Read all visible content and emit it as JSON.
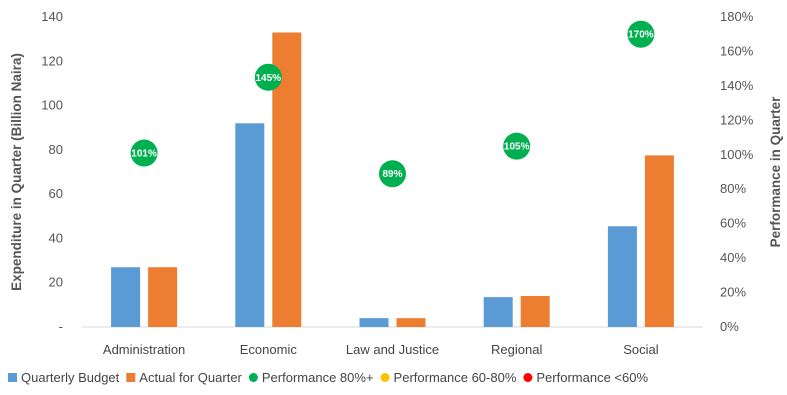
{
  "chart_data": {
    "type": "bar",
    "categories": [
      "Administration",
      "Economic",
      "Law and Justice",
      "Regional",
      "Social"
    ],
    "series": [
      {
        "name": "Quarterly Budget",
        "values": [
          27,
          92,
          4,
          13.5,
          45.5
        ]
      },
      {
        "name": "Actual for Quarter",
        "values": [
          27,
          133,
          4,
          14,
          77.5
        ]
      }
    ],
    "performance": {
      "values": [
        101,
        145,
        89,
        105,
        170
      ],
      "labels": [
        "101%",
        "145%",
        "89%",
        "105%",
        "170%"
      ]
    },
    "legend_labels": [
      "Quarterly Budget",
      "Actual for Quarter",
      "Performance 80%+",
      "Performance 60-80%",
      "Performance <60%"
    ],
    "ylabel": "Expenditure in Quarter (Billion Naira)",
    "y2label": "Performance in Quarter",
    "ylim": [
      0,
      140
    ],
    "y2lim": [
      0,
      180
    ],
    "y_ticks": [
      "-",
      "20",
      "40",
      "60",
      "80",
      "100",
      "120",
      "140"
    ],
    "y2_ticks": [
      "0%",
      "20%",
      "40%",
      "60%",
      "80%",
      "100%",
      "120%",
      "140%",
      "160%",
      "180%"
    ],
    "legend_position": "bottom",
    "grid": false,
    "colors": {
      "budget": "#5b9bd5",
      "actual": "#ed7d31",
      "perf_high": "#00b050",
      "perf_mid": "#ffc000",
      "perf_low": "#ff0000"
    }
  }
}
